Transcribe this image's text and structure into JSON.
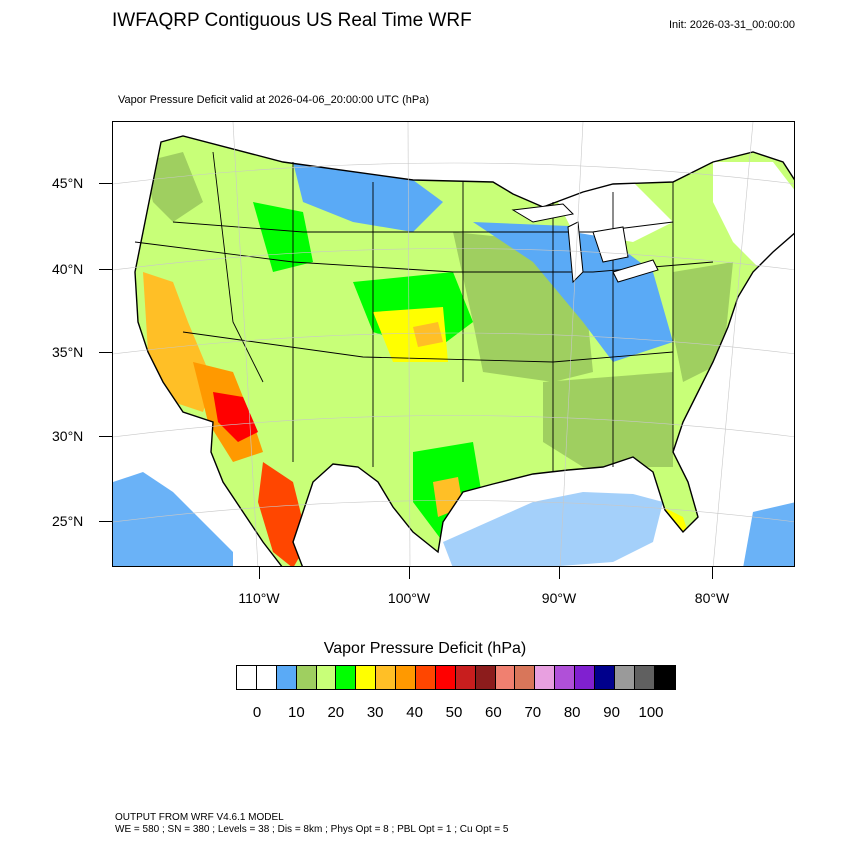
{
  "header": {
    "title": "IWFAQRP Contiguous US Real Time WRF",
    "init": "Init: 2026-03-31_00:00:00",
    "subtitle": "Vapor Pressure Deficit valid at 2026-04-06_20:00:00 UTC   (hPa)"
  },
  "map": {
    "lat_labels": [
      "45°N",
      "40°N",
      "35°N",
      "30°N",
      "25°N"
    ],
    "lon_labels": [
      "110°W",
      "100°W",
      "90°W",
      "80°W"
    ]
  },
  "legend": {
    "title": "Vapor Pressure Deficit  (hPa)",
    "labels": [
      "0",
      "10",
      "20",
      "30",
      "40",
      "50",
      "60",
      "70",
      "80",
      "90",
      "100"
    ],
    "colors": [
      "#ffffff",
      "#ffffff",
      "#5aaaf6",
      "#9fcf60",
      "#c8ff78",
      "#00ff00",
      "#ffff00",
      "#ffbf26",
      "#ff9900",
      "#ff4600",
      "#ff0000",
      "#c81e1e",
      "#8c1c1c",
      "#f08070",
      "#d8765a",
      "#e8a0e0",
      "#b050d8",
      "#8020d0",
      "#00008c",
      "#9a9a9a",
      "#606060",
      "#000000"
    ]
  },
  "footer": {
    "line1": "OUTPUT FROM WRF V4.6.1 MODEL",
    "line2": "WE = 580 ; SN = 380 ; Levels = 38 ; Dis = 8km ; Phys Opt = 8 ; PBL Opt = 1 ; Cu Opt = 5"
  }
}
